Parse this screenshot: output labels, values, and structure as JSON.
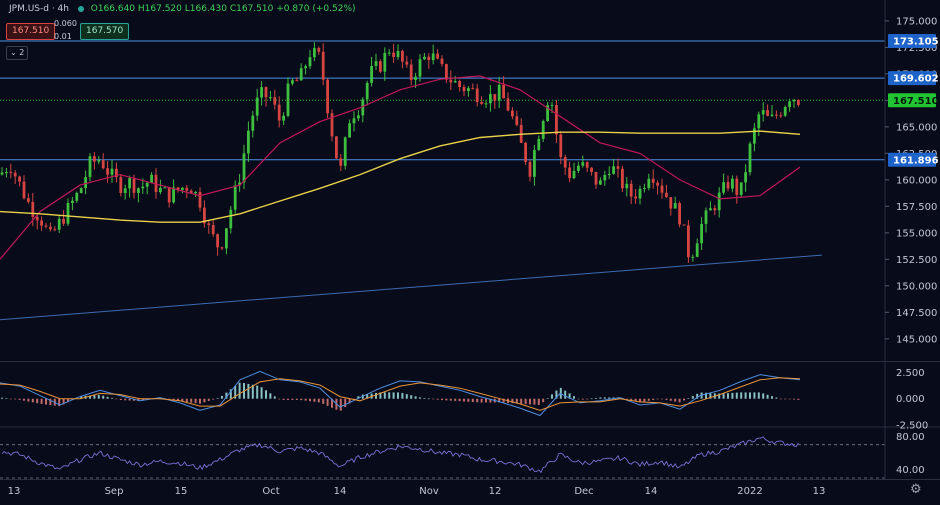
{
  "header": {
    "symbol": "JPM.US-d · 4h",
    "ohlc": "O166.640 H167.520 L166.430 C167.510 +0.870 (+0.52%)",
    "sell_price": "167.510",
    "lot_top": "0.060",
    "lot_bottom": "0.01",
    "buy_price": "167.570",
    "indicators_count": "2"
  },
  "colors": {
    "background": "#080b19",
    "bull": "#26a69a",
    "bull_body": "#3fbf3f",
    "bear": "#d64541",
    "ma_fast": "#c2185b",
    "ma_slow": "#e8d24a",
    "level_line": "#4a90e2",
    "trendline": "#3d6bb3",
    "current_price": "#21c432"
  },
  "chart_data": [
    {
      "type": "candlestick",
      "title": "",
      "y_range": [
        143,
        176.5
      ],
      "y_ticks": [
        "175.000",
        "172.500",
        "170.000",
        "167.500",
        "165.000",
        "162.500",
        "160.000",
        "157.500",
        "155.000",
        "152.500",
        "150.000",
        "147.500",
        "145.000"
      ],
      "x_ticks": [
        "13",
        "Sep",
        "15",
        "Oct",
        "14",
        "Nov",
        "12",
        "Dec",
        "14",
        "2022",
        "13"
      ],
      "price_levels": [
        {
          "label": "173.105",
          "value": 173.105,
          "style": "solid",
          "color": "#4a90e2"
        },
        {
          "label": "169.602",
          "value": 169.602,
          "style": "solid",
          "color": "#4a90e2"
        },
        {
          "label": "167.510",
          "value": 167.51,
          "style": "dotted",
          "color": "#21c432"
        },
        {
          "label": "161.896",
          "value": 161.896,
          "style": "solid",
          "color": "#4a90e2"
        }
      ],
      "trendline": {
        "from": [
          0,
          146.8
        ],
        "to": [
          822,
          152.9
        ]
      },
      "series": [
        {
          "kind": "close",
          "x": [
            0,
            10,
            20,
            30,
            40,
            50,
            60,
            70,
            80,
            90,
            100,
            110,
            120,
            130,
            140,
            150,
            160,
            170,
            180,
            190,
            200,
            210,
            220,
            230,
            240,
            250,
            260,
            270,
            280,
            290,
            300,
            310,
            320,
            330,
            340,
            350,
            360,
            370,
            380,
            390,
            400,
            410,
            420,
            430,
            440,
            450,
            460,
            470,
            480,
            490,
            500,
            510,
            520,
            530,
            540,
            550,
            560,
            570,
            580,
            590,
            600,
            610,
            620,
            630,
            640,
            650,
            660,
            670,
            680,
            690,
            700,
            710,
            720,
            730,
            740,
            750,
            760,
            770,
            780,
            790,
            800
          ],
          "y": [
            160.5,
            161.5,
            159.5,
            157.5,
            156.5,
            154.5,
            156,
            157.5,
            159,
            161.5,
            162,
            160.5,
            159.5,
            159.8,
            159.2,
            160,
            159,
            158.5,
            159.2,
            159.5,
            158,
            155,
            153.5,
            157,
            160.5,
            165.5,
            168,
            167.8,
            165.5,
            169,
            169.5,
            172,
            171.5,
            165.5,
            160.5,
            166,
            167,
            170,
            170.8,
            172.5,
            171.5,
            169.5,
            171,
            172,
            170.5,
            169.5,
            168.8,
            168.5,
            168,
            167.8,
            168.2,
            166.5,
            163.5,
            161,
            165,
            168.5,
            162,
            160.5,
            161.5,
            160.5,
            159.5,
            161.5,
            160,
            158.5,
            159,
            161,
            159.5,
            158,
            156.5,
            152.5,
            155.5,
            157,
            158.5,
            160,
            158.5,
            163,
            166.5,
            165.5,
            166.5,
            168,
            167.5
          ]
        },
        {
          "kind": "ma_fast",
          "x": [
            0,
            40,
            80,
            120,
            160,
            200,
            240,
            280,
            320,
            360,
            400,
            440,
            480,
            520,
            560,
            600,
            640,
            680,
            720,
            760,
            800
          ],
          "y": [
            152.5,
            157,
            159.5,
            160.5,
            159.5,
            158.5,
            159.5,
            163.5,
            165.5,
            166.8,
            168.5,
            169.5,
            169.8,
            168.5,
            166,
            163.5,
            162.5,
            160,
            158.2,
            158.5,
            161.2
          ]
        },
        {
          "kind": "ma_slow",
          "x": [
            0,
            40,
            80,
            120,
            160,
            200,
            240,
            280,
            320,
            360,
            400,
            440,
            480,
            520,
            560,
            600,
            640,
            680,
            720,
            760,
            800
          ],
          "y": [
            157,
            156.8,
            156.5,
            156.2,
            156,
            156,
            156.8,
            158,
            159.2,
            160.5,
            162,
            163.2,
            164,
            164.3,
            164.5,
            164.5,
            164.4,
            164.4,
            164.4,
            164.6,
            164.3
          ]
        }
      ]
    },
    {
      "type": "macd",
      "y_range": [
        -2.6,
        3.4
      ],
      "y_ticks": [
        "2.500",
        "0.000",
        "-2.500"
      ],
      "x": [
        0,
        20,
        40,
        60,
        80,
        100,
        120,
        140,
        160,
        180,
        200,
        220,
        240,
        260,
        280,
        300,
        320,
        340,
        360,
        380,
        400,
        420,
        440,
        460,
        480,
        500,
        520,
        540,
        560,
        580,
        600,
        620,
        640,
        660,
        680,
        700,
        720,
        740,
        760,
        780,
        800
      ],
      "series": [
        {
          "kind": "macd",
          "values": [
            1.5,
            1.2,
            0.3,
            -0.6,
            0.2,
            0.8,
            0.3,
            -0.2,
            0.1,
            -0.4,
            -1.1,
            -0.6,
            1.8,
            2.6,
            1.8,
            1.6,
            1.0,
            -0.8,
            0.1,
            1.0,
            1.7,
            1.6,
            1.2,
            0.8,
            0.2,
            -0.3,
            -0.9,
            -1.6,
            0.5,
            -0.4,
            -0.2,
            0.1,
            -0.6,
            -0.4,
            -1.0,
            0.3,
            0.8,
            1.6,
            2.3,
            2.0,
            1.8
          ]
        },
        {
          "kind": "signal",
          "values": [
            1.4,
            1.3,
            0.7,
            0.0,
            0.0,
            0.5,
            0.4,
            0.0,
            0.0,
            -0.2,
            -0.7,
            -0.7,
            0.5,
            1.6,
            1.9,
            1.7,
            1.3,
            0.2,
            -0.2,
            0.5,
            1.2,
            1.5,
            1.3,
            1.0,
            0.5,
            0.0,
            -0.5,
            -1.1,
            -0.4,
            -0.3,
            -0.3,
            0.0,
            -0.3,
            -0.4,
            -0.7,
            -0.2,
            0.4,
            1.1,
            1.8,
            2.0,
            1.9
          ]
        }
      ]
    },
    {
      "type": "oscillator",
      "y_range": [
        30,
        90
      ],
      "y_ticks": [
        "80.00",
        "40.00"
      ],
      "x": [
        0,
        20,
        40,
        60,
        80,
        100,
        120,
        140,
        160,
        180,
        200,
        220,
        240,
        260,
        280,
        300,
        320,
        340,
        360,
        380,
        400,
        420,
        440,
        460,
        480,
        500,
        520,
        540,
        560,
        580,
        600,
        620,
        640,
        660,
        680,
        700,
        720,
        740,
        760,
        780,
        800
      ],
      "series": [
        {
          "kind": "rsi",
          "values": [
            62,
            58,
            48,
            40,
            52,
            60,
            52,
            46,
            50,
            48,
            42,
            52,
            64,
            70,
            62,
            66,
            60,
            44,
            55,
            62,
            68,
            65,
            60,
            58,
            52,
            50,
            46,
            38,
            58,
            48,
            50,
            54,
            46,
            50,
            42,
            58,
            62,
            70,
            78,
            72,
            70
          ]
        }
      ]
    }
  ]
}
